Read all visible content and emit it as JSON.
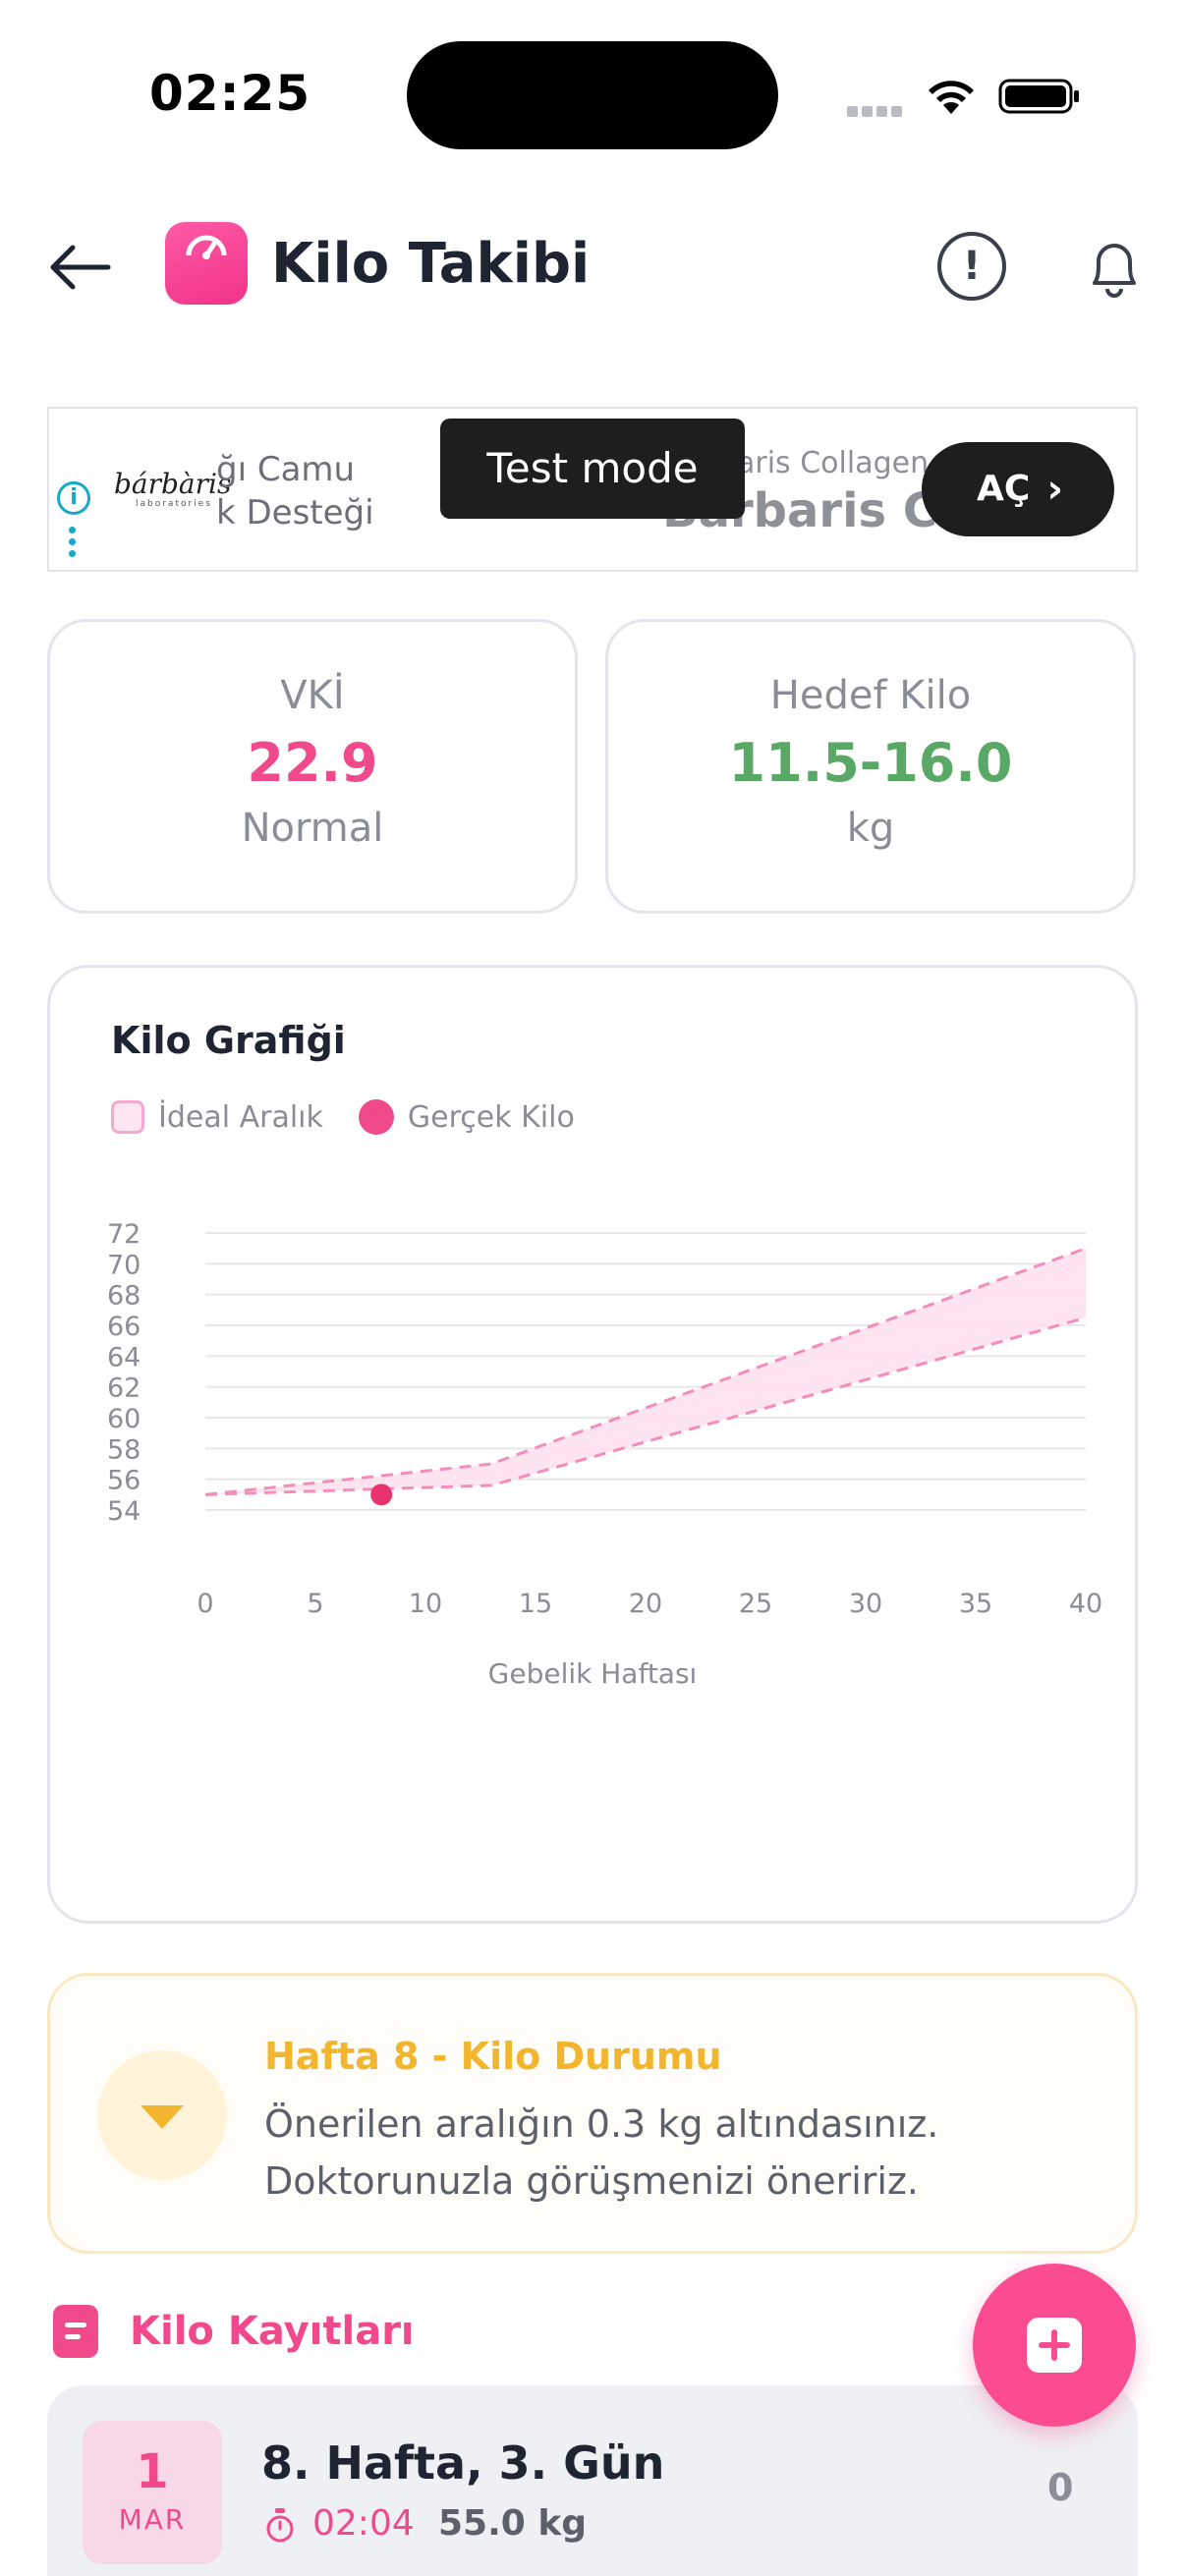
{
  "status_bar": {
    "time": "02:25"
  },
  "header": {
    "title": "Kilo Takibi",
    "back_icon": "arrow-left-icon",
    "info_icon": "exclamation-circle-icon",
    "info_glyph": "!",
    "bell_icon": "bell-icon"
  },
  "ad": {
    "brand": "bárbàris",
    "brand_sub": "laboratories",
    "text_line1": "ğı Camu",
    "text_line2": "k Desteği",
    "text_small": "aris Collagen",
    "text_big": "Barbaris Cam",
    "test_mode": "Test mode",
    "cta": "AÇ",
    "cta_chevron": "›"
  },
  "stats": {
    "bmi": {
      "label": "VKİ",
      "value": "22.9",
      "sub": "Normal",
      "color": "#f04a8c"
    },
    "target": {
      "label": "Hedef Kilo",
      "value": "11.5-16.0",
      "sub": "kg",
      "color": "#5aa865"
    }
  },
  "chart": {
    "title": "Kilo Grafiği",
    "legend_ideal": "İdeal Aralık",
    "legend_actual": "Gerçek Kilo"
  },
  "chart_data": {
    "type": "area",
    "title": "Kilo Grafiği",
    "xlabel": "Gebelik Haftası",
    "ylabel": "",
    "xlim": [
      0,
      40
    ],
    "ylim": [
      54,
      72
    ],
    "x_ticks": [
      0,
      5,
      10,
      15,
      20,
      25,
      30,
      35,
      40
    ],
    "y_ticks": [
      54,
      56,
      58,
      60,
      62,
      64,
      66,
      68,
      70,
      72
    ],
    "grid": true,
    "legend_position": "top-left",
    "series": [
      {
        "name": "İdeal Aralık",
        "kind": "band",
        "color": "#f48dbb",
        "x": [
          0,
          13,
          40
        ],
        "lower": [
          55.0,
          55.6,
          66.5
        ],
        "upper": [
          55.0,
          57.0,
          71.0
        ]
      },
      {
        "name": "Gerçek Kilo",
        "kind": "points",
        "color": "#e8336f",
        "x": [
          8
        ],
        "y": [
          55.0
        ]
      }
    ]
  },
  "status_card": {
    "title": "Hafta 8 - Kilo Durumu",
    "line1": "Önerilen aralığın 0.3 kg altındasınız.",
    "line2": "Doktorunuzla görüşmenizi öneririz."
  },
  "records": {
    "title": "Kilo Kayıtları",
    "items": [
      {
        "day": "1",
        "month": "MAR",
        "title": "8. Hafta, 3. Gün",
        "time": "02:04",
        "weight": "55.0 kg",
        "count": "0"
      }
    ]
  }
}
